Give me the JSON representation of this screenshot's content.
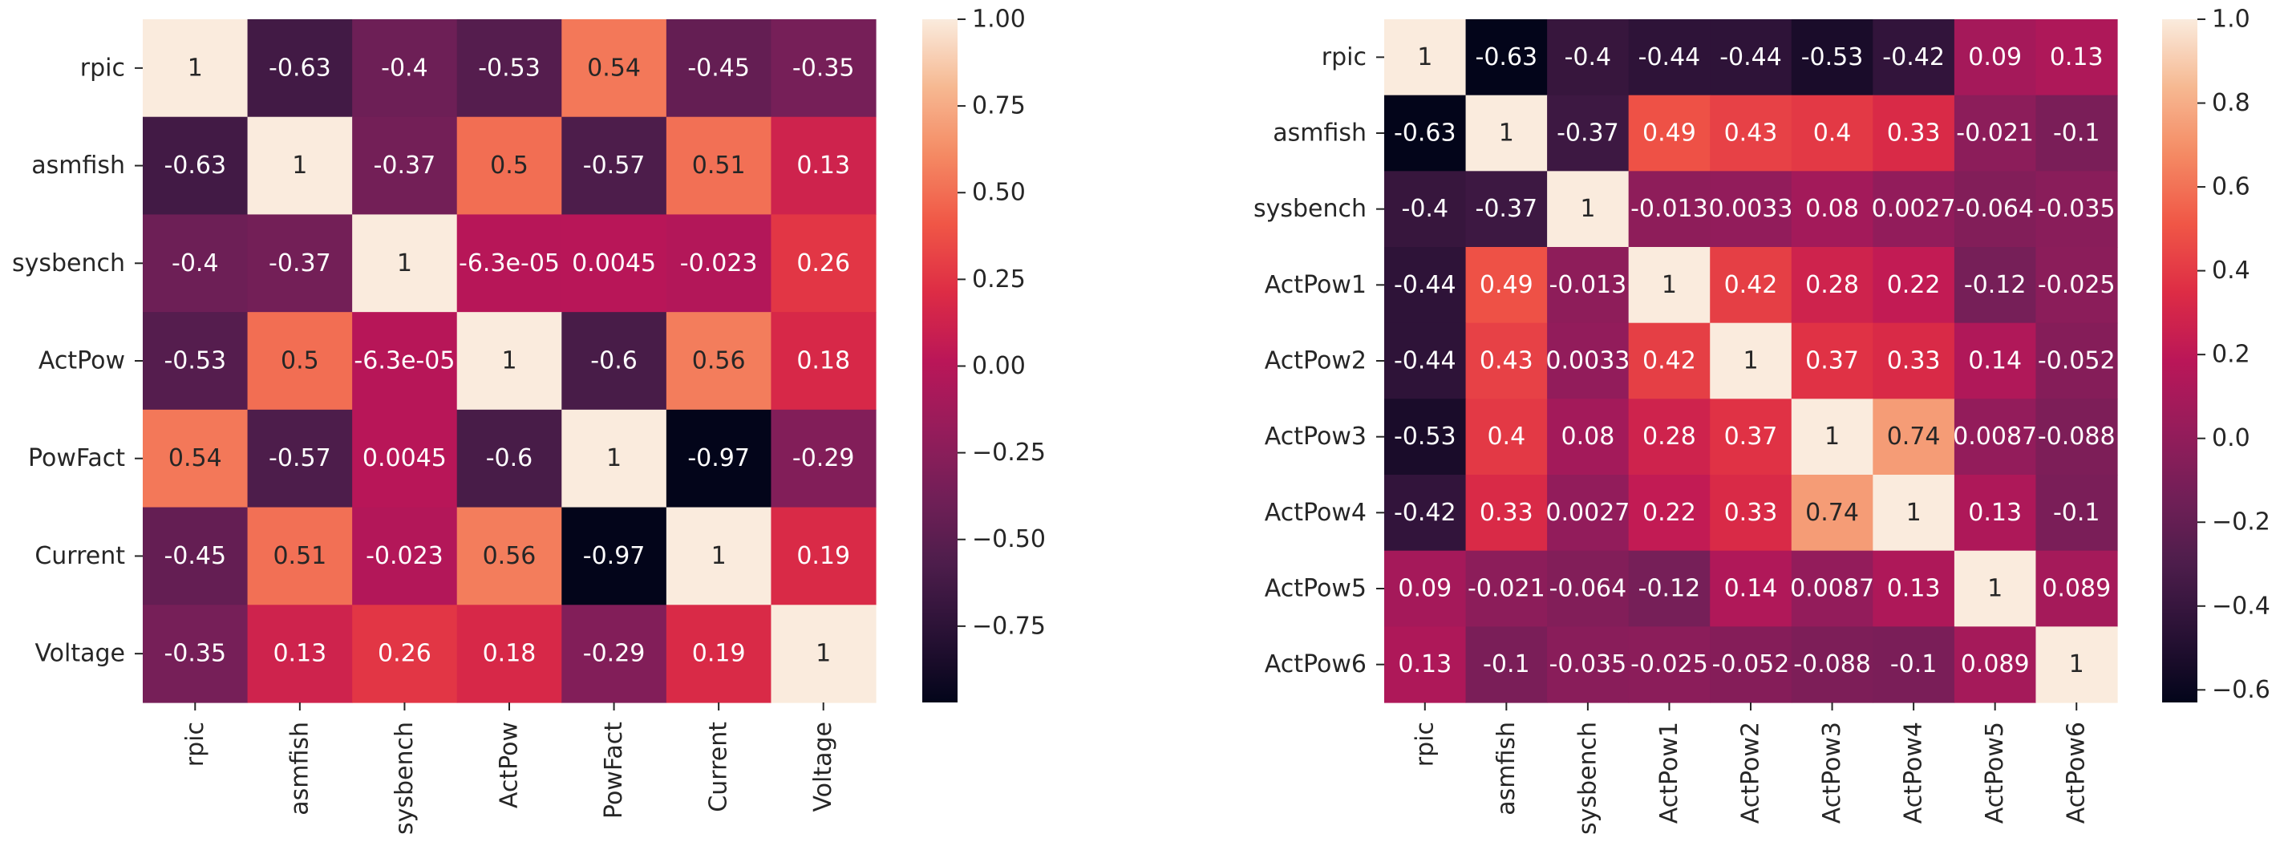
{
  "chart_data": [
    {
      "type": "heatmap",
      "title": "",
      "xlabel": "",
      "ylabel": "",
      "labels": [
        "rpic",
        "asmfish",
        "sysbench",
        "ActPow",
        "PowFact",
        "Current",
        "Voltage"
      ],
      "values": [
        [
          1,
          -0.63,
          -0.4,
          -0.53,
          0.54,
          -0.45,
          -0.35
        ],
        [
          -0.63,
          1,
          -0.37,
          0.5,
          -0.57,
          0.51,
          0.13
        ],
        [
          -0.4,
          -0.37,
          1,
          -6.3e-05,
          0.0045,
          -0.023,
          0.26
        ],
        [
          -0.53,
          0.5,
          -6.3e-05,
          1,
          -0.6,
          0.56,
          0.18
        ],
        [
          0.54,
          -0.57,
          0.0045,
          -0.6,
          1,
          -0.97,
          -0.29
        ],
        [
          -0.45,
          0.51,
          -0.023,
          0.56,
          -0.97,
          1,
          0.19
        ],
        [
          -0.35,
          0.13,
          0.26,
          0.18,
          -0.29,
          0.19,
          1
        ]
      ],
      "annotations": [
        [
          "1",
          "-0.63",
          "-0.4",
          "-0.53",
          "0.54",
          "-0.45",
          "-0.35"
        ],
        [
          "-0.63",
          "1",
          "-0.37",
          "0.5",
          "-0.57",
          "0.51",
          "0.13"
        ],
        [
          "-0.4",
          "-0.37",
          "1",
          "-6.3e-05",
          "0.0045",
          "-0.023",
          "0.26"
        ],
        [
          "-0.53",
          "0.5",
          "-6.3e-05",
          "1",
          "-0.6",
          "0.56",
          "0.18"
        ],
        [
          "0.54",
          "-0.57",
          "0.0045",
          "-0.6",
          "1",
          "-0.97",
          "-0.29"
        ],
        [
          "-0.45",
          "0.51",
          "-0.023",
          "0.56",
          "-0.97",
          "1",
          "0.19"
        ],
        [
          "-0.35",
          "0.13",
          "0.26",
          "0.18",
          "-0.29",
          "0.19",
          "1"
        ]
      ],
      "colorbar": {
        "range": [
          -0.97,
          1
        ],
        "ticks": [
          1.0,
          0.75,
          0.5,
          0.25,
          0.0,
          -0.25,
          -0.5,
          -0.75
        ],
        "tick_labels": [
          "1.00",
          "0.75",
          "0.50",
          "0.25",
          "0.00",
          "−0.25",
          "−0.50",
          "−0.75"
        ]
      },
      "colormap": "rocket"
    },
    {
      "type": "heatmap",
      "title": "",
      "xlabel": "",
      "ylabel": "",
      "labels": [
        "rpic",
        "asmfish",
        "sysbench",
        "ActPow1",
        "ActPow2",
        "ActPow3",
        "ActPow4",
        "ActPow5",
        "ActPow6"
      ],
      "values": [
        [
          1,
          -0.63,
          -0.4,
          -0.44,
          -0.44,
          -0.53,
          -0.42,
          0.09,
          0.13
        ],
        [
          -0.63,
          1,
          -0.37,
          0.49,
          0.43,
          0.4,
          0.33,
          -0.021,
          -0.1
        ],
        [
          -0.4,
          -0.37,
          1,
          -0.013,
          0.0033,
          0.08,
          0.0027,
          -0.064,
          -0.035
        ],
        [
          -0.44,
          0.49,
          -0.013,
          1,
          0.42,
          0.28,
          0.22,
          -0.12,
          -0.025
        ],
        [
          -0.44,
          0.43,
          0.0033,
          0.42,
          1,
          0.37,
          0.33,
          0.14,
          -0.052
        ],
        [
          -0.53,
          0.4,
          0.08,
          0.28,
          0.37,
          1,
          0.74,
          0.0087,
          -0.088
        ],
        [
          -0.42,
          0.33,
          0.0027,
          0.22,
          0.33,
          0.74,
          1,
          0.13,
          -0.1
        ],
        [
          0.09,
          -0.021,
          -0.064,
          -0.12,
          0.14,
          0.0087,
          0.13,
          1,
          0.089
        ],
        [
          0.13,
          -0.1,
          -0.035,
          -0.025,
          -0.052,
          -0.088,
          -0.1,
          0.089,
          1
        ]
      ],
      "annotations": [
        [
          "1",
          "-0.63",
          "-0.4",
          "-0.44",
          "-0.44",
          "-0.53",
          "-0.42",
          "0.09",
          "0.13"
        ],
        [
          "-0.63",
          "1",
          "-0.37",
          "0.49",
          "0.43",
          "0.4",
          "0.33",
          "-0.021",
          "-0.1"
        ],
        [
          "-0.4",
          "-0.37",
          "1",
          "-0.013",
          "0.0033",
          "0.08",
          "0.0027",
          "-0.064",
          "-0.035"
        ],
        [
          "-0.44",
          "0.49",
          "-0.013",
          "1",
          "0.42",
          "0.28",
          "0.22",
          "-0.12",
          "-0.025"
        ],
        [
          "-0.44",
          "0.43",
          "0.0033",
          "0.42",
          "1",
          "0.37",
          "0.33",
          "0.14",
          "-0.052"
        ],
        [
          "-0.53",
          "0.4",
          "0.08",
          "0.28",
          "0.37",
          "1",
          "0.74",
          "0.0087",
          "-0.088"
        ],
        [
          "-0.42",
          "0.33",
          "0.0027",
          "0.22",
          "0.33",
          "0.74",
          "1",
          "0.13",
          "-0.1"
        ],
        [
          "0.09",
          "-0.021",
          "-0.064",
          "-0.12",
          "0.14",
          "0.0087",
          "0.13",
          "1",
          "0.089"
        ],
        [
          "0.13",
          "-0.1",
          "-0.035",
          "-0.025",
          "-0.052",
          "-0.088",
          "-0.1",
          "0.089",
          "1"
        ]
      ],
      "colorbar": {
        "range": [
          -0.63,
          1
        ],
        "ticks": [
          1.0,
          0.8,
          0.6,
          0.4,
          0.2,
          0.0,
          -0.2,
          -0.4,
          -0.6
        ],
        "tick_labels": [
          "1.0",
          "0.8",
          "0.6",
          "0.4",
          "0.2",
          "0.0",
          "−0.2",
          "−0.4",
          "−0.6"
        ]
      },
      "colormap": "rocket"
    }
  ]
}
